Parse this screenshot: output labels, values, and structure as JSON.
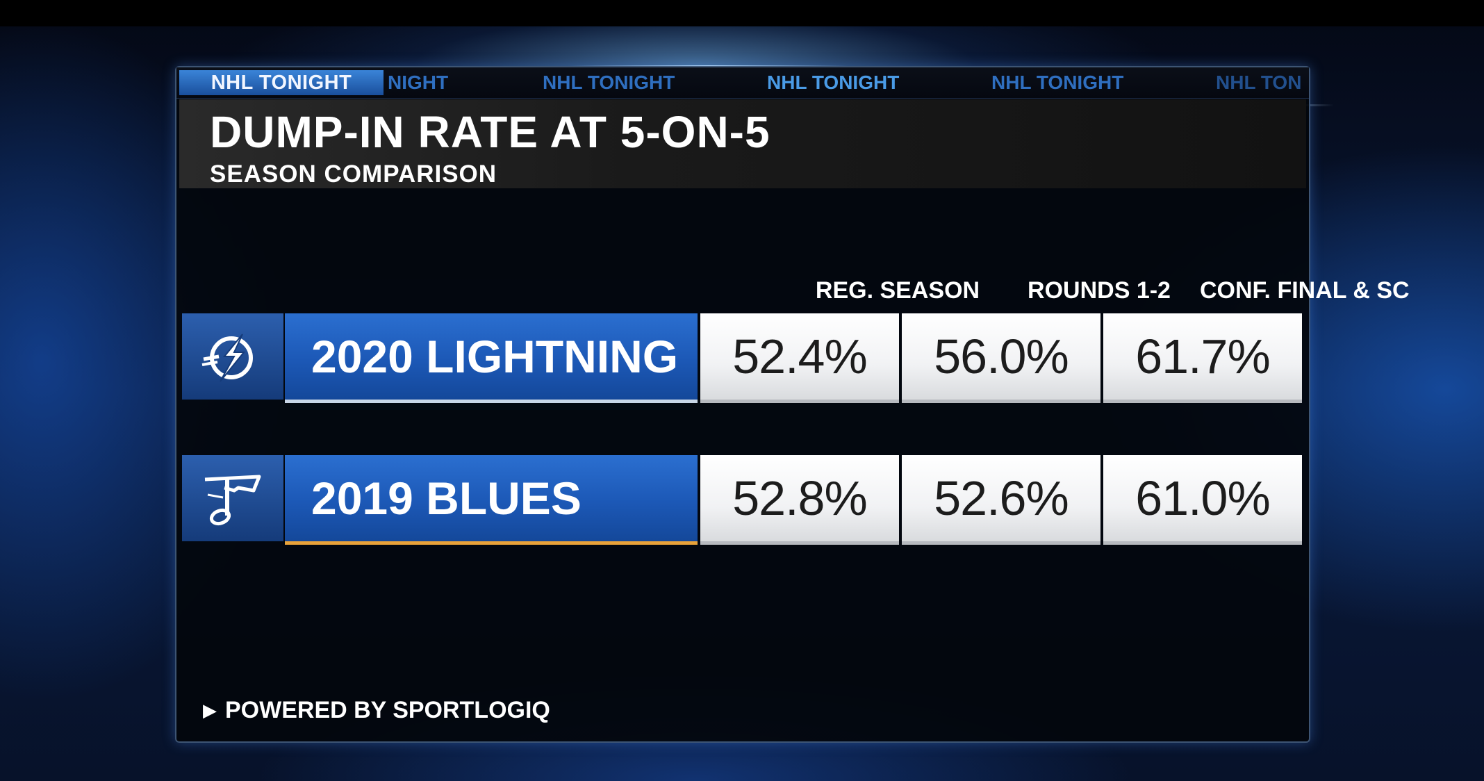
{
  "ticker": {
    "active": "NHL TONIGHT",
    "items": [
      "NIGHT",
      "NHL TONIGHT",
      "NHL TONIGHT",
      "NHL TONIGHT",
      "NHL TON"
    ]
  },
  "title": "DUMP-IN RATE AT 5-ON-5",
  "subtitle": "SEASON COMPARISON",
  "columns": [
    "REG. SEASON",
    "ROUNDS 1-2",
    "CONF. FINAL & SC"
  ],
  "rows": [
    {
      "team": "2020 LIGHTNING",
      "logo": "lightning-bolt-icon",
      "values": [
        "52.4%",
        "56.0%",
        "61.7%"
      ],
      "accent_color": "#c9d6e6"
    },
    {
      "team": "2019 BLUES",
      "logo": "blue-note-icon",
      "values": [
        "52.8%",
        "52.6%",
        "61.0%"
      ],
      "accent_color": "#e8a23a"
    }
  ],
  "footer": "POWERED BY SPORTLOGIQ",
  "colors": {
    "team_blue": "#1c58b6",
    "cell_white": "#f1f2f4",
    "panel_bg": "#03060c"
  }
}
